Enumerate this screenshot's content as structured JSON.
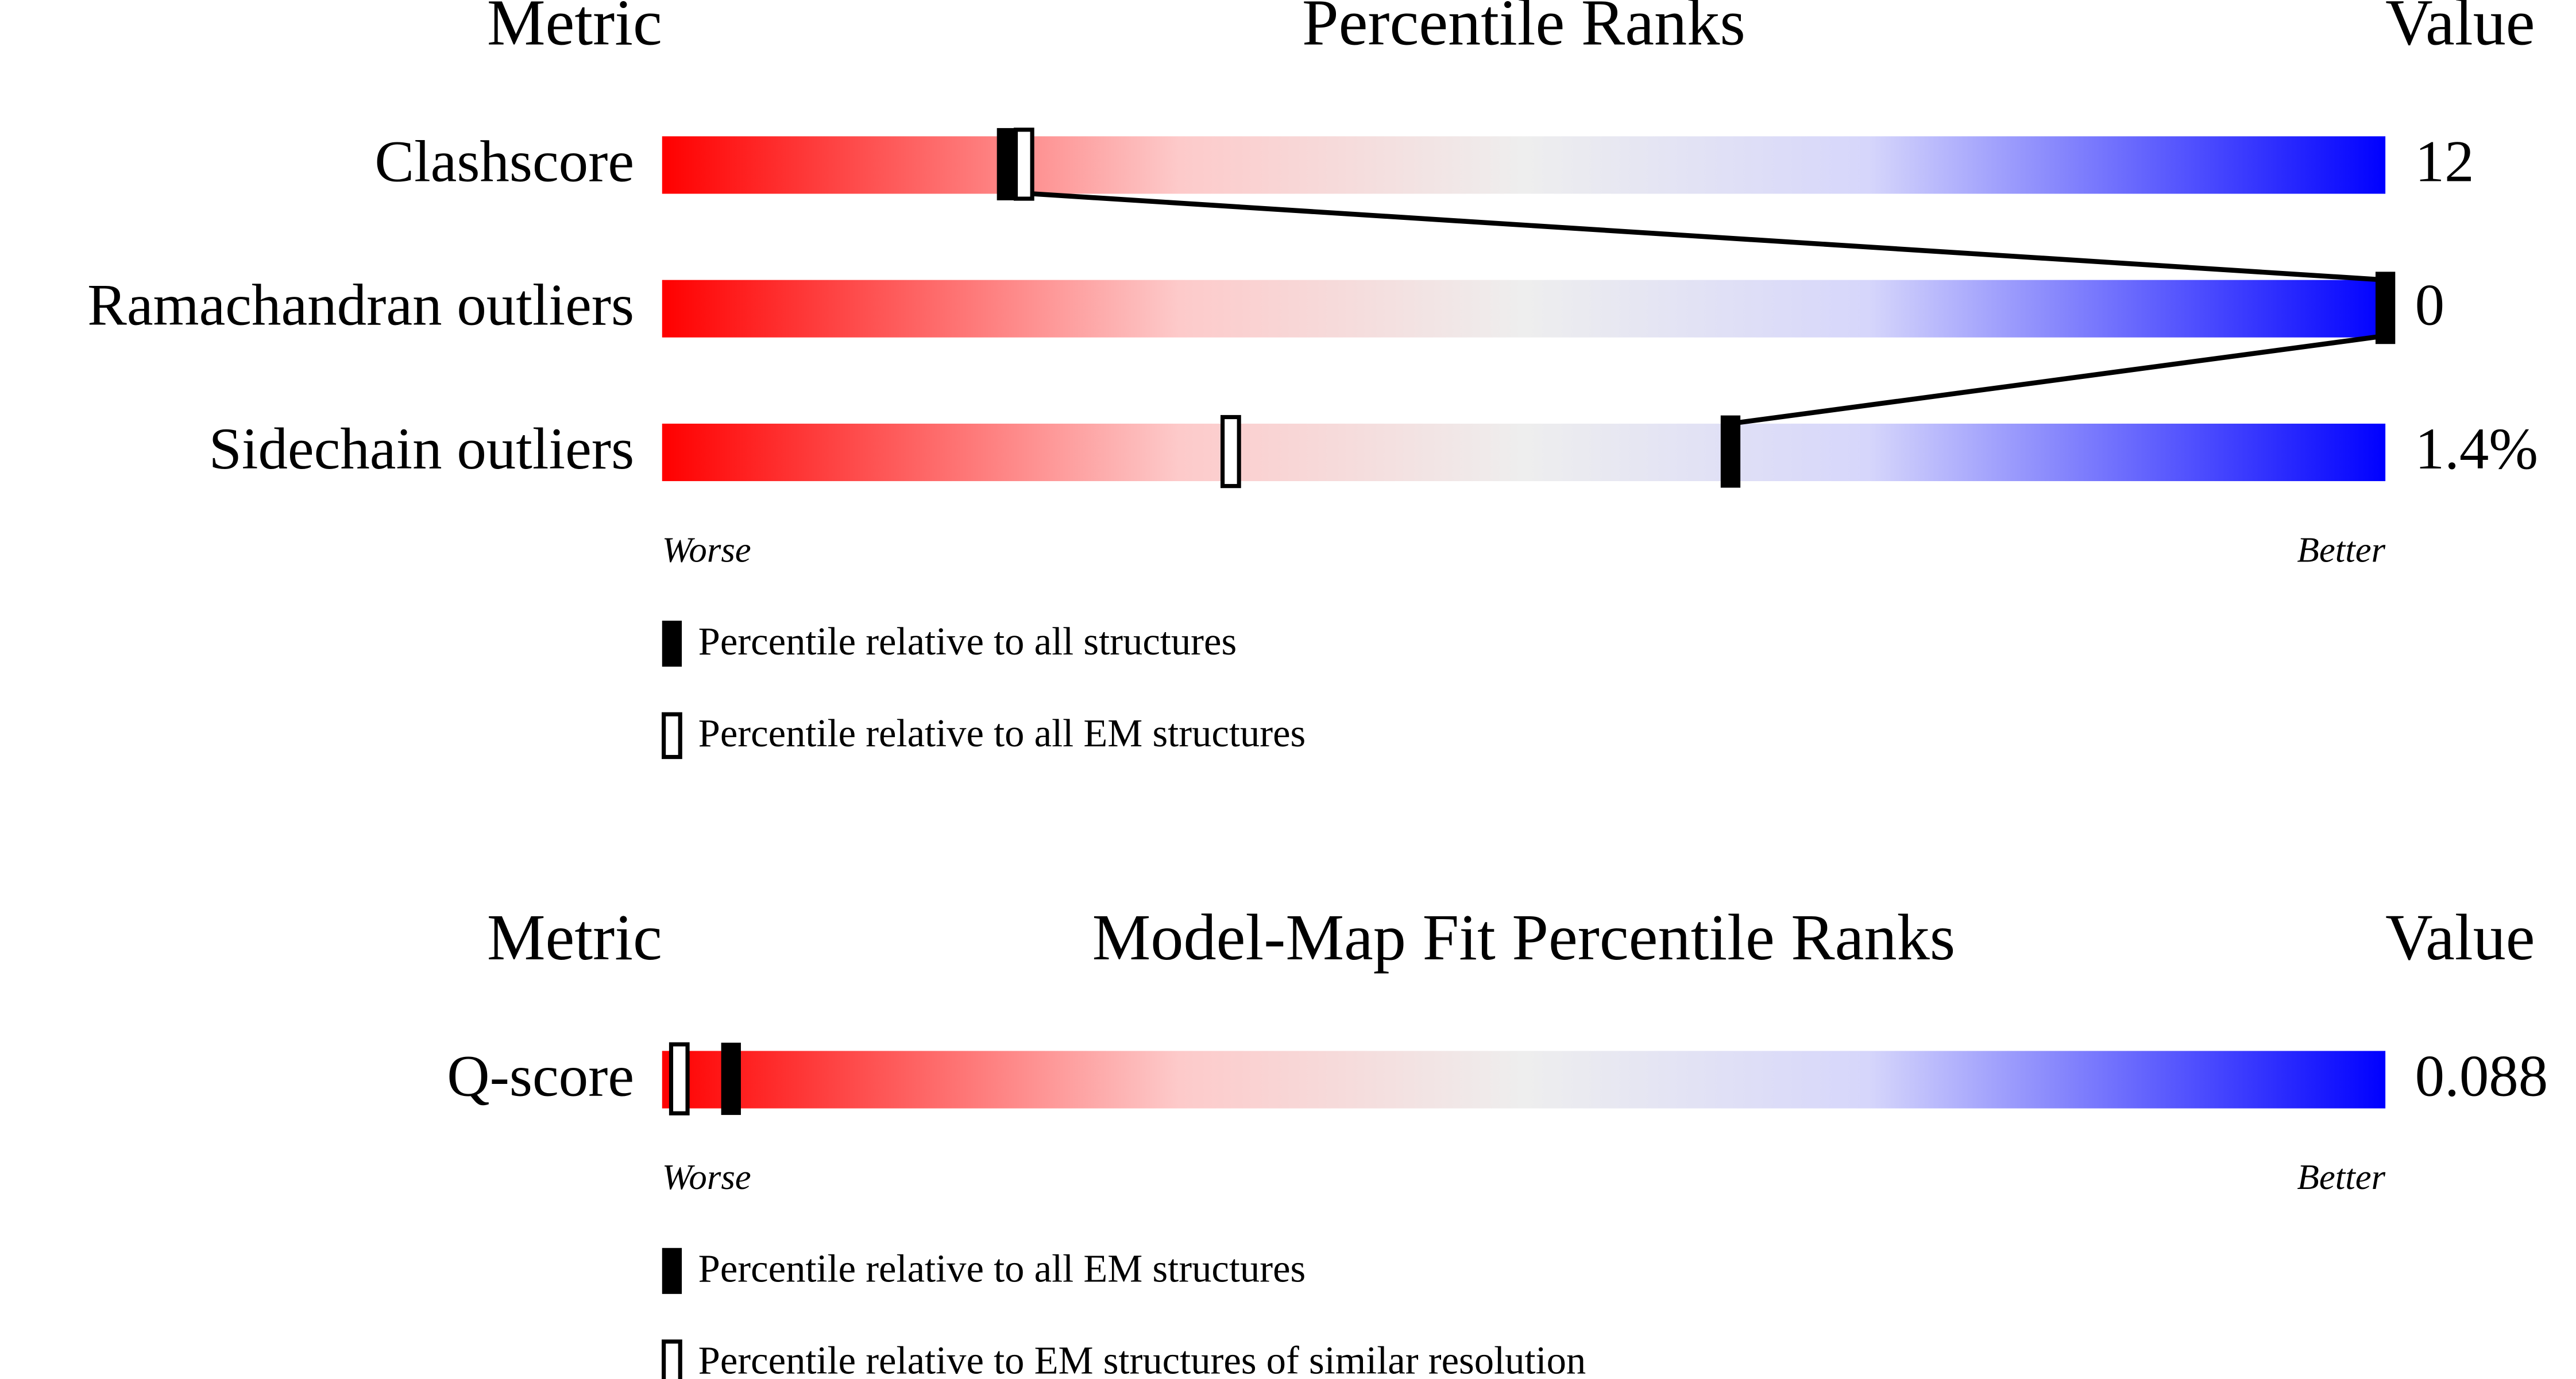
{
  "panels": [
    {
      "headers": {
        "metric": "Metric",
        "title": "Percentile Ranks",
        "value": "Value"
      },
      "rows": [
        {
          "label": "Clashscore",
          "value": "12",
          "solid": 20,
          "open": 21
        },
        {
          "label": "Ramachandran outliers",
          "value": "0",
          "solid": 100
        },
        {
          "label": "Sidechain outliers",
          "value": "1.4%",
          "solid": 62,
          "open": 33
        }
      ],
      "worse": "Worse",
      "better": "Better",
      "legend": {
        "solid": "Percentile relative to all structures",
        "open": "Percentile relative to all EM structures"
      }
    },
    {
      "headers": {
        "metric": "Metric",
        "title": "Model-Map Fit Percentile Ranks",
        "value": "Value"
      },
      "rows": [
        {
          "label": "Q-score",
          "value": "0.088",
          "solid": 4,
          "open": 1
        }
      ],
      "worse": "Worse",
      "better": "Better",
      "legend": {
        "solid": "Percentile relative to all EM structures",
        "open": "Percentile relative to EM structures of similar resolution"
      }
    }
  ]
}
